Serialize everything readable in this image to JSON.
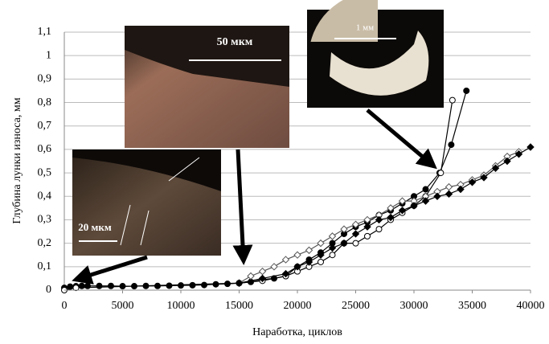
{
  "chart_data": {
    "type": "line",
    "xlabel": "Наработка, циклов",
    "ylabel": "Глубина лунки износа, мм",
    "annotations": [
      "50 мкм",
      "1 мм",
      "20 мкм"
    ],
    "xlim": [
      0,
      40000
    ],
    "xticks": [
      0,
      5000,
      10000,
      15000,
      20000,
      25000,
      30000,
      35000,
      40000
    ],
    "ylim": [
      0,
      1.1
    ],
    "yticks": [
      {
        "value": 0,
        "label": "0"
      },
      {
        "value": 0.1,
        "label": "0,1"
      },
      {
        "value": 0.2,
        "label": "0,2"
      },
      {
        "value": 0.3,
        "label": "0,3"
      },
      {
        "value": 0.4,
        "label": "0,4"
      },
      {
        "value": 0.5,
        "label": "0,5"
      },
      {
        "value": 0.6,
        "label": "0,6"
      },
      {
        "value": 0.7,
        "label": "0,7"
      },
      {
        "value": 0.8,
        "label": "0,8"
      },
      {
        "value": 0.9,
        "label": "0,9"
      },
      {
        "value": 1,
        "label": "1"
      },
      {
        "value": 1.1,
        "label": "1,1"
      }
    ],
    "grid": true,
    "series": [
      {
        "color": "#000000",
        "marker": "circle",
        "marker_fill": "#000000",
        "x": [
          0,
          500,
          1000,
          1500,
          2000,
          3000,
          4000,
          5000,
          6000,
          7000,
          8000,
          9000,
          10000,
          11000,
          12000,
          13000,
          14000,
          15000,
          16000,
          17000,
          18000,
          19000,
          20000,
          21000,
          22000,
          23000,
          24000,
          25000,
          26000,
          27000,
          28000,
          29000,
          30000,
          31000,
          32200,
          33200,
          34500
        ],
        "values": [
          0.01,
          0.015,
          0.017,
          0.018,
          0.018,
          0.018,
          0.018,
          0.017,
          0.017,
          0.018,
          0.018,
          0.019,
          0.02,
          0.021,
          0.022,
          0.025,
          0.027,
          0.03,
          0.035,
          0.045,
          0.05,
          0.06,
          0.1,
          0.13,
          0.16,
          0.2,
          0.24,
          0.27,
          0.29,
          0.32,
          0.34,
          0.37,
          0.4,
          0.43,
          0.5,
          0.62,
          0.85
        ]
      },
      {
        "color": "#000000",
        "marker": "circle",
        "marker_fill": "#ffffff",
        "x": [
          0,
          1000,
          15000,
          17000,
          19000,
          20000,
          21000,
          22000,
          23000,
          24000,
          25000,
          26000,
          27000,
          28000,
          29000,
          30000,
          31000,
          32300,
          33300
        ],
        "values": [
          0,
          0.01,
          0.03,
          0.04,
          0.06,
          0.08,
          0.1,
          0.12,
          0.15,
          0.2,
          0.2,
          0.23,
          0.26,
          0.3,
          0.33,
          0.36,
          0.4,
          0.5,
          0.81
        ]
      },
      {
        "color": "#555555",
        "marker": "diamond",
        "marker_fill": "#ffffff",
        "x": [
          15000,
          16000,
          17000,
          18000,
          19000,
          20000,
          21000,
          22000,
          23000,
          24000,
          25000,
          26000,
          27000,
          28000,
          29000,
          30000,
          31000,
          32000,
          33000,
          34000,
          35000,
          36000,
          37000,
          38000,
          39000
        ],
        "values": [
          0.03,
          0.06,
          0.08,
          0.1,
          0.13,
          0.15,
          0.17,
          0.2,
          0.23,
          0.26,
          0.28,
          0.3,
          0.32,
          0.35,
          0.38,
          0.38,
          0.4,
          0.42,
          0.44,
          0.45,
          0.47,
          0.49,
          0.53,
          0.57,
          0.59
        ]
      },
      {
        "color": "#000000",
        "marker": "diamond",
        "marker_fill": "#000000",
        "x": [
          15000,
          17000,
          19000,
          20000,
          21000,
          22000,
          23000,
          24000,
          25000,
          26000,
          27000,
          28000,
          29000,
          30000,
          31000,
          32000,
          33000,
          34000,
          35000,
          36000,
          37000,
          38000,
          39000,
          40000
        ],
        "values": [
          0.03,
          0.05,
          0.07,
          0.1,
          0.12,
          0.15,
          0.18,
          0.2,
          0.24,
          0.27,
          0.3,
          0.31,
          0.34,
          0.36,
          0.38,
          0.4,
          0.41,
          0.43,
          0.46,
          0.48,
          0.52,
          0.55,
          0.58,
          0.61
        ]
      }
    ]
  }
}
